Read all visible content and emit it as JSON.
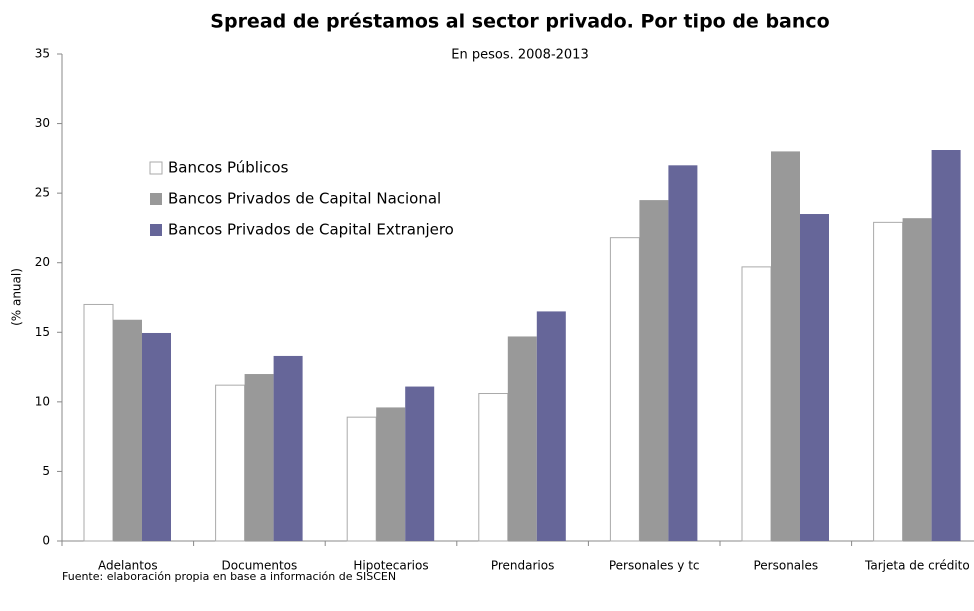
{
  "chart_data": {
    "type": "bar",
    "title": "Spread de préstamos al sector privado. Por tipo de banco",
    "subtitle": "En pesos. 2008-2013",
    "y_label": "(% anual)",
    "source": "Fuente: elaboración propia en base a información de SISCEN",
    "categories": [
      "Adelantos",
      "Documentos",
      "Hipotecarios",
      "Prendarios",
      "Personales y tc",
      "Personales",
      "Tarjeta de crédito"
    ],
    "series": [
      {
        "name": "Bancos Públicos",
        "color": "#ffffff",
        "values": [
          17.0,
          11.2,
          8.9,
          10.6,
          21.8,
          19.7,
          22.9
        ]
      },
      {
        "name": "Bancos Privados de Capital Nacional",
        "color": "#999999",
        "values": [
          15.9,
          12.0,
          9.6,
          14.7,
          24.5,
          28.0,
          23.2
        ]
      },
      {
        "name": "Bancos Privados de Capital Extranjero",
        "color": "#666699",
        "values": [
          14.95,
          13.3,
          11.1,
          16.5,
          27.0,
          23.5,
          28.1
        ]
      }
    ],
    "ylim": [
      0,
      35
    ],
    "yticks": [
      0,
      5,
      10,
      15,
      20,
      25,
      30,
      35
    ],
    "legend": "upper left"
  }
}
